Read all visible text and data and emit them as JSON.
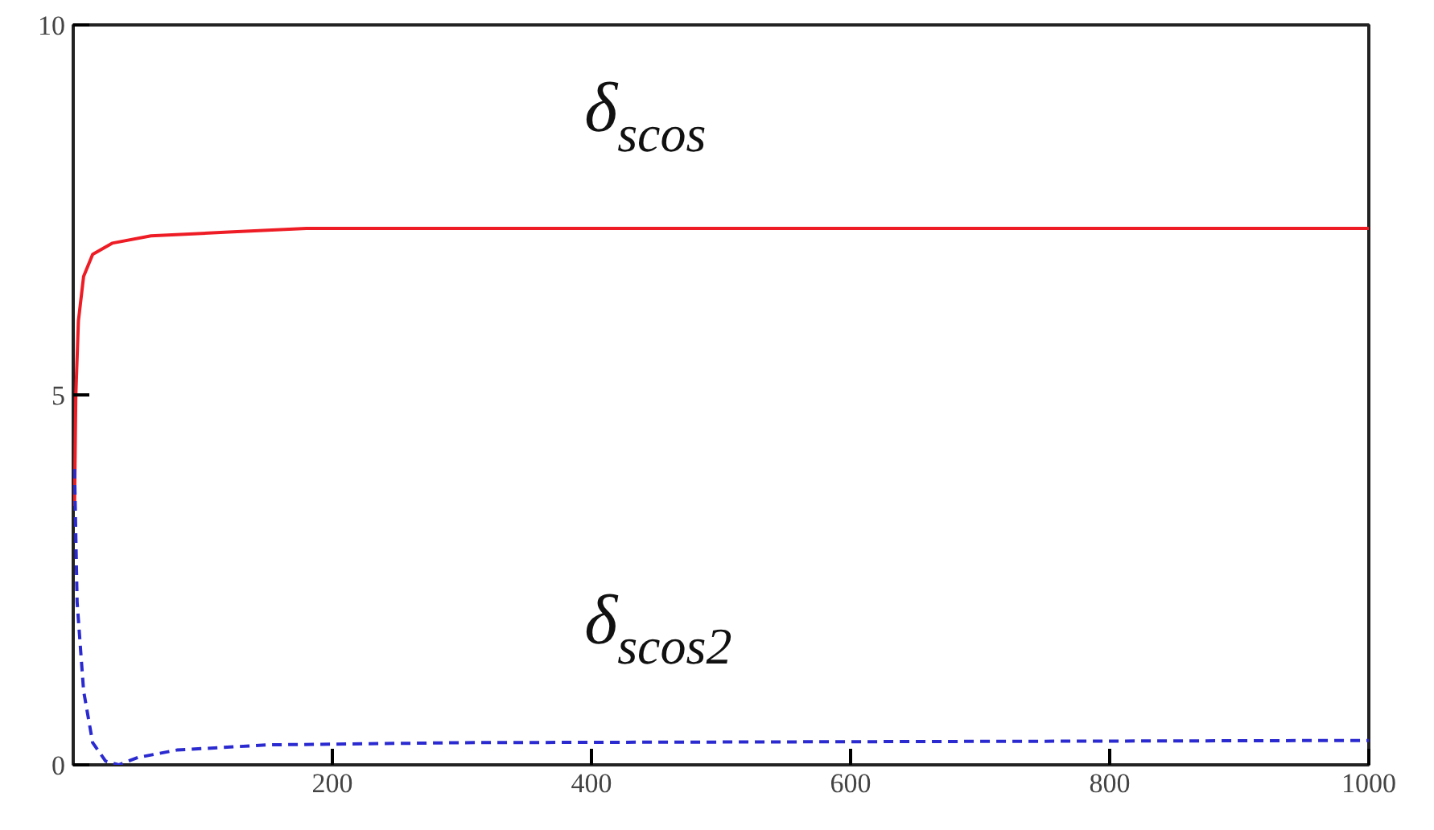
{
  "chart_data": {
    "type": "line",
    "xlim": [
      0,
      1000
    ],
    "ylim": [
      0,
      10
    ],
    "xticks": [
      200,
      400,
      600,
      800,
      1000
    ],
    "yticks": [
      0,
      5,
      10
    ],
    "grid": false,
    "series": [
      {
        "name": "δ$_{scos}$",
        "color": "#ee1c25",
        "line_style": "solid",
        "x": [
          1,
          2,
          4,
          8,
          15,
          30,
          60,
          120,
          180,
          1000
        ],
        "values": [
          3.5,
          5,
          6,
          6.6,
          6.9,
          7.05,
          7.15,
          7.2,
          7.25,
          7.25
        ]
      },
      {
        "name": "δ$_{scos2}$",
        "color": "#2a2ad0",
        "line_style": "dashed",
        "x": [
          1,
          3,
          8,
          15,
          25,
          35,
          50,
          80,
          150,
          300,
          1000
        ],
        "values": [
          4,
          2.2,
          1,
          0.3,
          0.05,
          0,
          0.1,
          0.2,
          0.27,
          0.3,
          0.33
        ]
      }
    ]
  }
}
